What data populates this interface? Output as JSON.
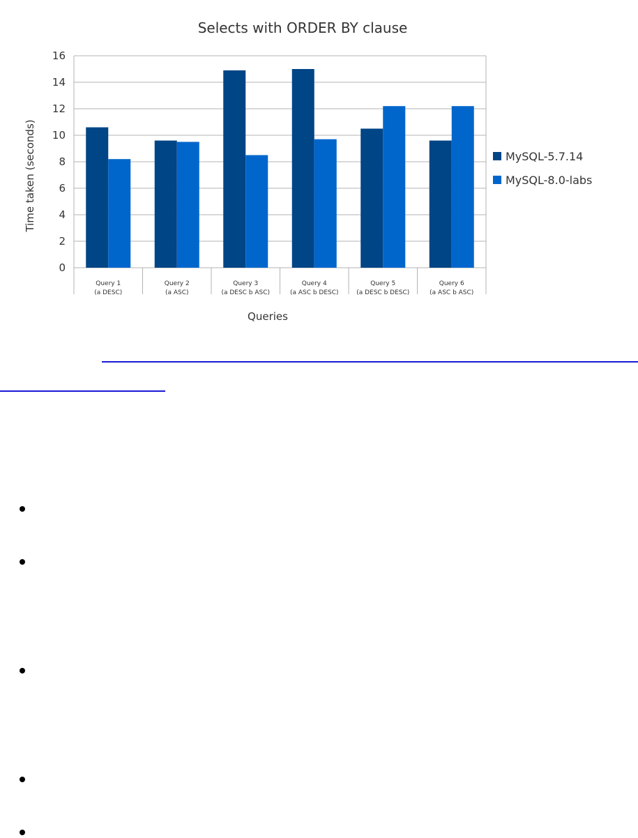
{
  "chart_data": {
    "type": "bar",
    "title": "Selects with ORDER BY clause",
    "xlabel": "Queries",
    "ylabel": "Time taken (seconds)",
    "ylim": [
      0,
      16
    ],
    "yticks": [
      0,
      2,
      4,
      6,
      8,
      10,
      12,
      14,
      16
    ],
    "grid": true,
    "legend_position": "right",
    "categories": [
      {
        "line1": "Query 1",
        "line2": "(a DESC)"
      },
      {
        "line1": "Query 2",
        "line2": "(a ASC)"
      },
      {
        "line1": "Query 3",
        "line2": "(a DESC b ASC)"
      },
      {
        "line1": "Query 4",
        "line2": "(a ASC b DESC)"
      },
      {
        "line1": "Query 5",
        "line2": "(a DESC b DESC)"
      },
      {
        "line1": "Query 6",
        "line2": "(a ASC b ASC)"
      }
    ],
    "series": [
      {
        "name": "MySQL-5.7.14",
        "color": "#004586",
        "values": [
          10.6,
          9.6,
          14.9,
          15.0,
          10.5,
          9.6
        ]
      },
      {
        "name": "MySQL-8.0-labs",
        "color": "#0066cc",
        "values": [
          8.2,
          9.5,
          8.5,
          9.7,
          12.2,
          12.2
        ]
      }
    ]
  },
  "colors": {
    "link": "#1a1ad6",
    "text": "#333333",
    "grid": "#b3b3b3"
  }
}
